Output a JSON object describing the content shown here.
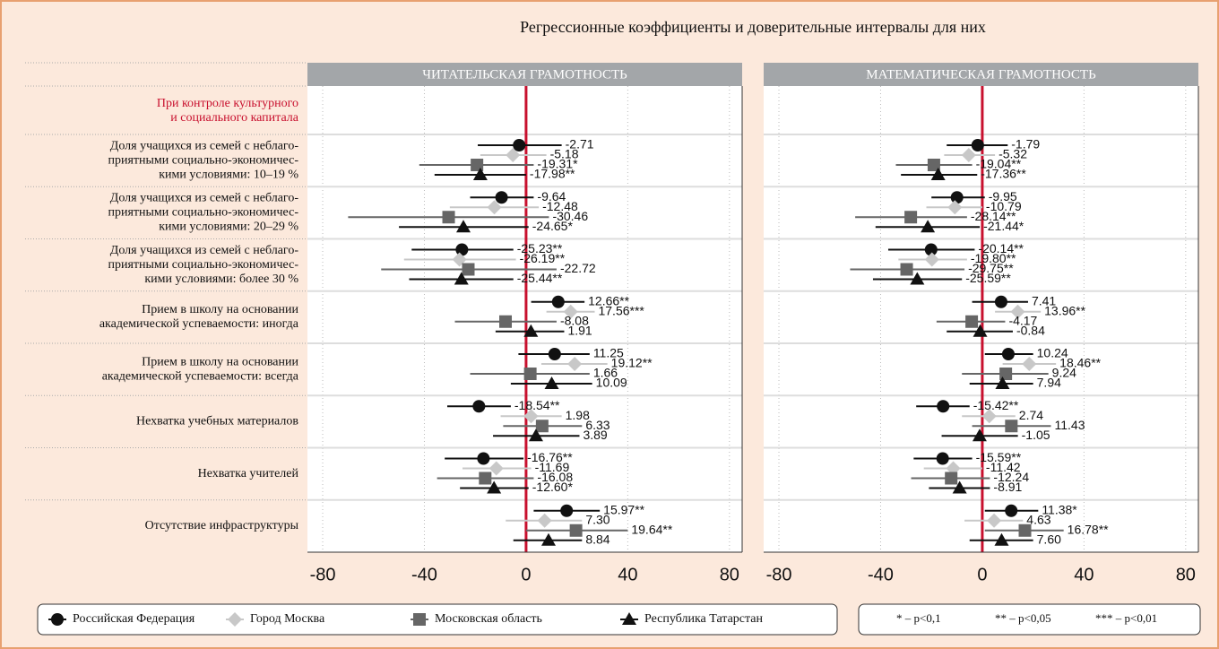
{
  "chart_data": {
    "type": "forest",
    "title": "Регрессионные коэффициенты и доверительные интервалы для них",
    "section_label": [
      "При контроле культурного",
      "и социального капитала"
    ],
    "categories": [
      [
        "Доля учащихся из семей с неблаго-",
        "приятными социально-экономичес-",
        "кими условиями: 10–19 %"
      ],
      [
        "Доля учащихся из семей с неблаго-",
        "приятными социально-экономичес-",
        "кими условиями: 20–29 %"
      ],
      [
        "Доля учащихся из семей с неблаго-",
        "приятными социально-экономичес-",
        "кими условиями: более 30 %"
      ],
      [
        "Прием в школу на основании",
        "академической успеваемости: иногда"
      ],
      [
        "Прием в школу на основании",
        "академической успеваемости: всегда"
      ],
      [
        "Нехватка учебных материалов"
      ],
      [
        "Нехватка учителей"
      ],
      [
        "Отсутствие инфраструктуры"
      ]
    ],
    "xlim": [
      -86,
      85
    ],
    "xticks": [
      -80,
      -40,
      0,
      40,
      80
    ],
    "grid": true,
    "reference_line": {
      "value": 0,
      "color": "#c8102e"
    },
    "notes": [
      "* – p<0,1",
      "** – p<0,05",
      "*** – p<0,01"
    ],
    "panels": [
      {
        "title": "ЧИТАТЕЛЬСКАЯ ГРАМОТНОСТЬ",
        "series": [
          {
            "name": "Российская Федерация",
            "color": "#111111",
            "marker": "circle",
            "values": [
              -2.71,
              -9.64,
              -25.23,
              12.66,
              11.25,
              -18.54,
              -16.76,
              15.97
            ],
            "value_labels": [
              "-2.71",
              "-9.64",
              "-25.23**",
              "12.66**",
              "11.25",
              "-18.54**",
              "-16.76**",
              "15.97**"
            ],
            "ci_low": [
              -19,
              -22,
              -45,
              2,
              -3,
              -31,
              -32,
              3
            ],
            "ci_high": [
              14,
              3,
              -5,
              23,
              25,
              -6,
              -1,
              29
            ]
          },
          {
            "name": "Город Москва",
            "color": "#c8c8c8",
            "marker": "diamond",
            "values": [
              -5.18,
              -12.48,
              -26.19,
              17.56,
              19.12,
              1.98,
              -11.69,
              7.3
            ],
            "value_labels": [
              "-5.18",
              "-12.48",
              "-26.19**",
              "17.56***",
              "19.12**",
              "1.98",
              "-11.69",
              "7.30"
            ],
            "ci_low": [
              -18,
              -30,
              -48,
              8,
              6,
              -10,
              -25,
              -8
            ],
            "ci_high": [
              8,
              5,
              -4,
              27,
              32,
              14,
              2,
              22
            ]
          },
          {
            "name": "Московская область",
            "color": "#666666",
            "marker": "square",
            "values": [
              -19.31,
              -30.46,
              -22.72,
              -8.08,
              1.66,
              6.33,
              -16.08,
              19.64
            ],
            "value_labels": [
              "-19.31*",
              "-30.46",
              "-22.72",
              "-8.08",
              "1.66",
              "6.33",
              "-16.08",
              "19.64**"
            ],
            "ci_low": [
              -42,
              -70,
              -57,
              -28,
              -22,
              -9,
              -35,
              0
            ],
            "ci_high": [
              3,
              9,
              12,
              12,
              25,
              22,
              3,
              40
            ]
          },
          {
            "name": "Республика Татарстан",
            "color": "#111111",
            "marker": "triangle",
            "values": [
              -17.98,
              -24.65,
              -25.44,
              1.91,
              10.09,
              3.89,
              -12.6,
              8.84
            ],
            "value_labels": [
              "-17.98**",
              "-24.65*",
              "-25.44**",
              "1.91",
              "10.09",
              "3.89",
              "-12.60*",
              "8.84"
            ],
            "ci_low": [
              -36,
              -50,
              -46,
              -12,
              -6,
              -13,
              -26,
              -5
            ],
            "ci_high": [
              0,
              1,
              -5,
              15,
              26,
              21,
              1,
              22
            ]
          }
        ]
      },
      {
        "title": "МАТЕМАТИЧЕСКАЯ ГРАМОТНОСТЬ",
        "series": [
          {
            "name": "Российская Федерация",
            "color": "#111111",
            "marker": "circle",
            "values": [
              -1.79,
              -9.95,
              -20.14,
              7.41,
              10.24,
              -15.42,
              -15.59,
              11.38
            ],
            "value_labels": [
              "-1.79",
              "-9.95",
              "-20.14**",
              "7.41",
              "10.24",
              "-15.42**",
              "-15.59**",
              "11.38*"
            ],
            "ci_low": [
              -14,
              -20,
              -37,
              -4,
              1,
              -26,
              -27,
              1
            ],
            "ci_high": [
              10,
              1,
              -3,
              18,
              20,
              -5,
              -4,
              22
            ]
          },
          {
            "name": "Город Москва",
            "color": "#c8c8c8",
            "marker": "diamond",
            "values": [
              -5.32,
              -10.79,
              -19.8,
              13.96,
              18.46,
              2.74,
              -11.42,
              4.63
            ],
            "value_labels": [
              "-5.32",
              "-10.79",
              "-19.80**",
              "13.96**",
              "18.46**",
              "2.74",
              "-11.42",
              "4.63"
            ],
            "ci_low": [
              -15,
              -22,
              -33,
              5,
              8,
              -8,
              -23,
              -7
            ],
            "ci_high": [
              5,
              0,
              -6,
              23,
              29,
              13,
              0,
              16
            ]
          },
          {
            "name": "Московская область",
            "color": "#666666",
            "marker": "square",
            "values": [
              -19.04,
              -28.14,
              -29.75,
              -4.17,
              9.24,
              11.43,
              -12.24,
              16.78
            ],
            "value_labels": [
              "-19.04**",
              "-28.14**",
              "-29.75**",
              "-4.17",
              "9.24",
              "11.43",
              "-12.24",
              "16.78**"
            ],
            "ci_low": [
              -34,
              -50,
              -52,
              -18,
              -8,
              -4,
              -28,
              1
            ],
            "ci_high": [
              -4,
              -6,
              -7,
              9,
              26,
              27,
              3,
              32
            ]
          },
          {
            "name": "Республика Татарстан",
            "color": "#111111",
            "marker": "triangle",
            "values": [
              -17.36,
              -21.44,
              -25.59,
              -0.84,
              7.94,
              -1.05,
              -8.91,
              7.6
            ],
            "value_labels": [
              "-17.36**",
              "-21.44*",
              "-25.59**",
              "-0.84",
              "7.94",
              "-1.05",
              "-8.91",
              "7.60"
            ],
            "ci_low": [
              -32,
              -42,
              -43,
              -14,
              -5,
              -16,
              -21,
              -5
            ],
            "ci_high": [
              -2,
              -1,
              -8,
              12,
              20,
              14,
              3,
              20
            ]
          }
        ]
      }
    ]
  }
}
